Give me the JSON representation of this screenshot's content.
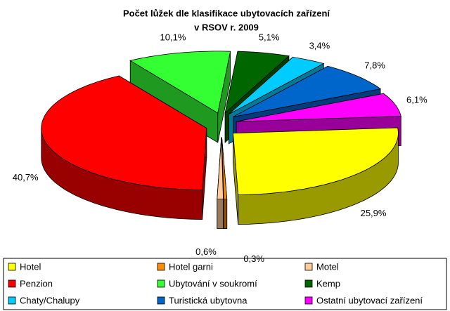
{
  "chart_data": {
    "type": "pie",
    "title_lines": [
      "Počet lůžek dle klasifikace ubytovacích zařízení",
      "v RSOV r. 2009"
    ],
    "categories": [
      "Hotel",
      "Hotel garni",
      "Motel",
      "Penzion",
      "Ubytování v soukromí",
      "Kemp",
      "Chaty/Chalupy",
      "Turistická ubytovna",
      "Ostatní ubytovací zařízení"
    ],
    "values": [
      25.9,
      0.3,
      0.6,
      40.7,
      10.1,
      5.1,
      3.4,
      7.8,
      6.1
    ],
    "value_labels": [
      "25,9%",
      "0,3%",
      "0,6%",
      "40,7%",
      "10,1%",
      "5,1%",
      "3,4%",
      "7,8%",
      "6,1%"
    ],
    "colors": [
      "#ffff00",
      "#ff8c00",
      "#ffcc99",
      "#ff0000",
      "#33ff33",
      "#006600",
      "#00ccff",
      "#0066cc",
      "#ff00ff"
    ],
    "legend": "bottom"
  }
}
